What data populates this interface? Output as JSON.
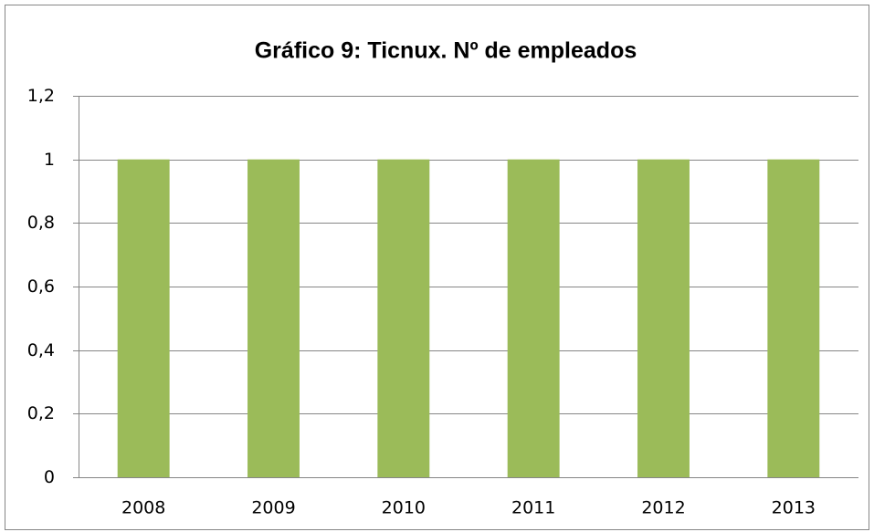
{
  "chart_data": {
    "type": "bar",
    "title": "Gráfico 9: Ticnux. Nº de empleados",
    "categories": [
      "2008",
      "2009",
      "2010",
      "2011",
      "2012",
      "2013"
    ],
    "values": [
      1,
      1,
      1,
      1,
      1,
      1
    ],
    "color": "#9bbb59",
    "ylim": [
      0,
      1.2
    ],
    "yticks": [
      0,
      {
        "value": 0.2,
        "label": "0,2"
      },
      {
        "value": 0.4,
        "label": "0,4"
      },
      {
        "value": 0.6,
        "label": "0,6"
      },
      {
        "value": 0.8,
        "label": "0,8"
      },
      1,
      {
        "value": 1.2,
        "label": "1,2"
      }
    ],
    "grid": true
  }
}
